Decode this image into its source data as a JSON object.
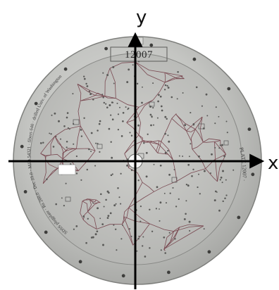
{
  "plate": {
    "id_text": "12007",
    "rim_left_text": "SDSS plugplate · Ra 260.0 · Dec 29.0 · MJD 54321 · fibers 640 · drilled Univ. of Washington",
    "rim_right_text": "PLATE 12007 · U-W Physics Shop",
    "metal_light": "#cfcfcd",
    "metal_dark": "#8e8f8d",
    "zone_line_color": "#7a4a52"
  },
  "axes": {
    "x_label": "x",
    "y_label": "y",
    "color": "#000000"
  }
}
